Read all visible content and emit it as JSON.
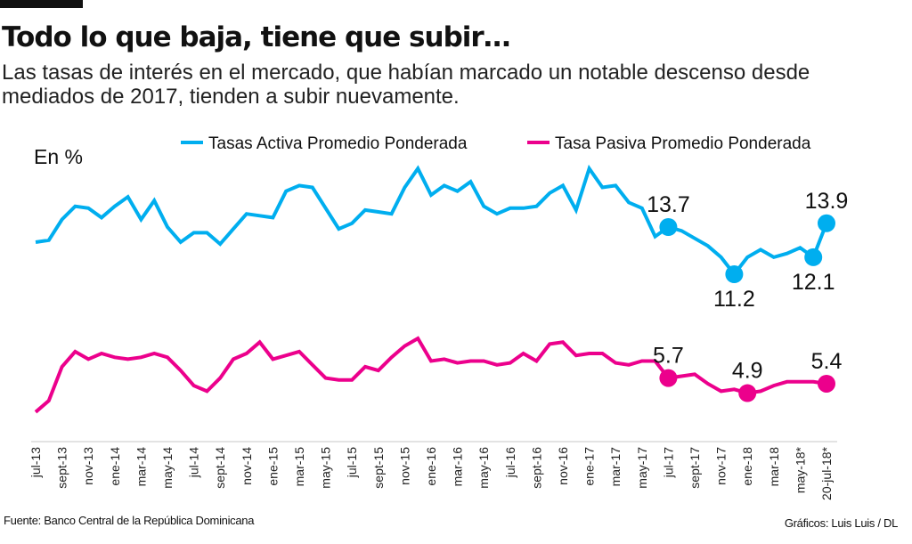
{
  "header": {
    "title": "Todo lo que baja, tiene que subir…",
    "subtitle": "Las tasas de interés en el mercado, que habían marcado un notable descenso desde mediados de 2017, tienden a subir nuevamente."
  },
  "footer": {
    "source": "Fuente: Banco Central de la República Dominicana",
    "credit": "Gráficos: Luis Luis / DL"
  },
  "chart_data": {
    "type": "line",
    "title": "",
    "ylabel": "En %",
    "xlabel": "",
    "grid": false,
    "legend_position": "top",
    "tick_labels": [
      "jul-13",
      "sept-13",
      "nov-13",
      "ene-14",
      "mar-14",
      "may-14",
      "jul-14",
      "sept-14",
      "nov-14",
      "ene-15",
      "mar-15",
      "may-15",
      "jul-15",
      "sept-15",
      "nov-15",
      "ene-16",
      "mar-16",
      "may-16",
      "jul-16",
      "sept-16",
      "nov-16",
      "ene-17",
      "mar-17",
      "may-17",
      "jul-17",
      "sept-17",
      "nov-17",
      "ene-18",
      "mar-18",
      "may-18*",
      "20-jul-18*"
    ],
    "x_frequency": "monthly",
    "x_range": [
      "jul-13",
      "20-jul-18*"
    ],
    "ylim": [
      3.5,
      17
    ],
    "series": [
      {
        "name": "Tasas Activa Promedio Ponderada",
        "color": "#00AEEF",
        "values": [
          12.9,
          13.0,
          14.1,
          14.8,
          14.7,
          14.2,
          14.8,
          15.3,
          14.1,
          15.1,
          13.7,
          12.9,
          13.4,
          13.4,
          12.8,
          13.6,
          14.4,
          14.3,
          14.2,
          15.6,
          15.9,
          15.8,
          14.7,
          13.6,
          13.9,
          14.6,
          14.5,
          14.4,
          15.8,
          16.8,
          15.4,
          15.9,
          15.6,
          16.1,
          14.8,
          14.4,
          14.7,
          14.7,
          14.8,
          15.5,
          15.9,
          14.6,
          16.8,
          15.8,
          15.9,
          15.0,
          14.7,
          13.2,
          13.7,
          13.5,
          13.1,
          12.7,
          12.1,
          11.2,
          12.1,
          12.5,
          12.1,
          12.3,
          12.6,
          12.1,
          13.9
        ]
      },
      {
        "name": "Tasa Pasiva Promedio Ponderada",
        "color": "#EC008C",
        "values": [
          3.9,
          4.5,
          6.3,
          7.1,
          6.7,
          7.0,
          6.8,
          6.7,
          6.8,
          7.0,
          6.8,
          6.1,
          5.3,
          5.0,
          5.7,
          6.7,
          7.0,
          7.6,
          6.7,
          6.9,
          7.1,
          6.4,
          5.7,
          5.6,
          5.6,
          6.3,
          6.1,
          6.8,
          7.4,
          7.8,
          6.6,
          6.7,
          6.5,
          6.6,
          6.6,
          6.4,
          6.5,
          7.0,
          6.6,
          7.5,
          7.6,
          6.9,
          7.0,
          7.0,
          6.5,
          6.4,
          6.6,
          6.6,
          5.7,
          5.8,
          5.9,
          5.4,
          5.0,
          5.1,
          4.9,
          5.0,
          5.3,
          5.5,
          5.5,
          5.5,
          5.4
        ]
      }
    ],
    "annotations": [
      {
        "series": 0,
        "index": 48,
        "text": "13.7",
        "placement": "above"
      },
      {
        "series": 0,
        "index": 53,
        "text": "11.2",
        "placement": "below"
      },
      {
        "series": 0,
        "index": 59,
        "text": "12.1",
        "placement": "below"
      },
      {
        "series": 0,
        "index": 60,
        "text": "13.9",
        "placement": "above"
      },
      {
        "series": 1,
        "index": 48,
        "text": "5.7",
        "placement": "above"
      },
      {
        "series": 1,
        "index": 54,
        "text": "4.9",
        "placement": "above"
      },
      {
        "series": 1,
        "index": 60,
        "text": "5.4",
        "placement": "above"
      }
    ]
  }
}
